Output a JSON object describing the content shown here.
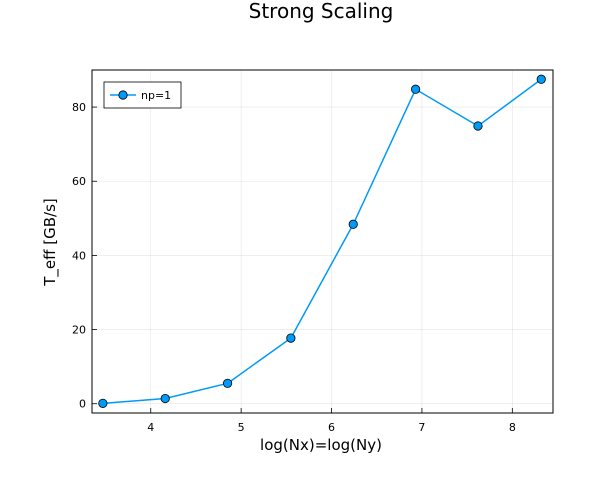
{
  "chart_data": {
    "type": "line",
    "title": "Strong Scaling",
    "xlabel": "log(Nx)=log(Ny)",
    "ylabel": "T_eff [GB/s]",
    "xlim": [
      3.35,
      8.45
    ],
    "ylim": [
      -2.5,
      90
    ],
    "xticks": [
      4,
      5,
      6,
      7,
      8
    ],
    "yticks": [
      0,
      20,
      40,
      60,
      80
    ],
    "grid": true,
    "legend_position": "top-left",
    "series": [
      {
        "name": "np=1",
        "color": "#009af9",
        "marker": "circle",
        "x": [
          3.47,
          4.16,
          4.85,
          5.55,
          6.24,
          6.93,
          7.62,
          8.32
        ],
        "y": [
          0.1,
          1.4,
          5.5,
          17.7,
          48.4,
          84.8,
          74.9,
          87.5
        ]
      }
    ]
  }
}
